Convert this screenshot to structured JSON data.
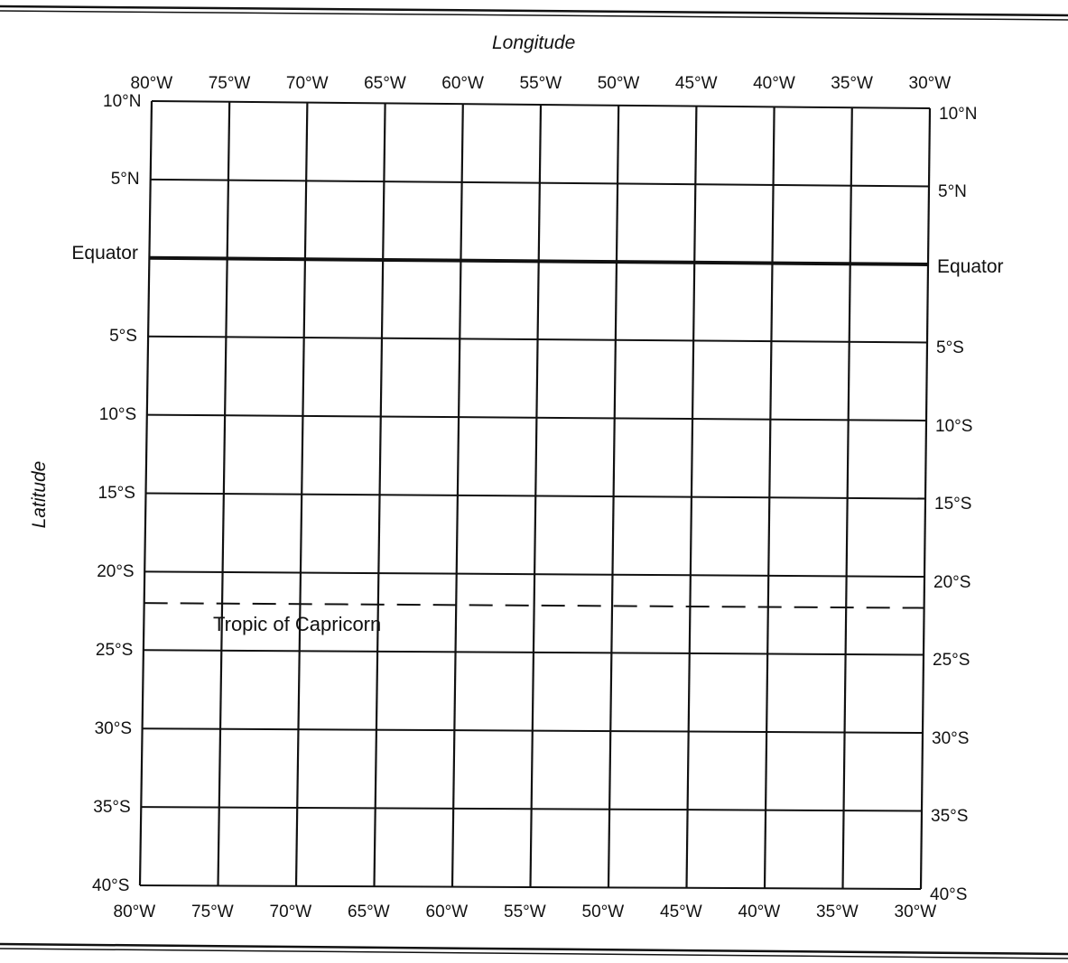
{
  "grid": {
    "longitude_title": "Longitude",
    "latitude_title": "Latitude",
    "top_longitudes": [
      "80°W",
      "75°W",
      "70°W",
      "65°W",
      "60°W",
      "55°W",
      "50°W",
      "45°W",
      "40°W",
      "35°W",
      "30°W"
    ],
    "bottom_longitudes": [
      "80°W",
      "75°W",
      "70°W",
      "65°W",
      "60°W",
      "55°W",
      "50°W",
      "45°W",
      "40°W",
      "35°W",
      "30°W"
    ],
    "left_latitudes": [
      "10°N",
      "5°N",
      "Equator",
      "5°S",
      "10°S",
      "15°S",
      "20°S",
      "25°S",
      "30°S",
      "35°S",
      "40°S"
    ],
    "right_latitudes": [
      "10°N",
      "5°N",
      "Equator",
      "5°S",
      "10°S",
      "15°S",
      "20°S",
      "25°S",
      "30°S",
      "35°S",
      "40°S"
    ],
    "tropic_label": "Tropic of Capricorn",
    "longitude_range": [
      "80°W",
      "30°W"
    ],
    "latitude_range": [
      "10°N",
      "40°S"
    ],
    "equator_emphasized": true,
    "tropic_style": "dashed"
  }
}
